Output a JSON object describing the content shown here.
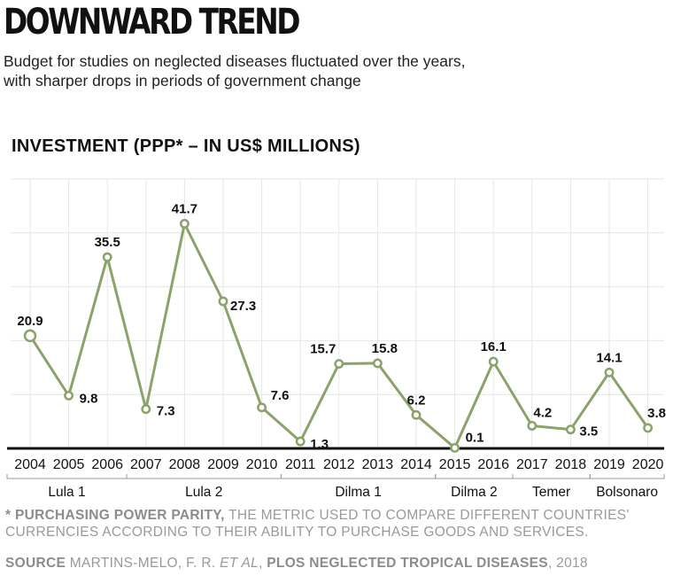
{
  "header": {
    "title": "DOWNWARD TREND",
    "subtitle_line1": "Budget for studies on neglected diseases fluctuated over the years,",
    "subtitle_line2": "with sharper drops in periods of government change"
  },
  "chart_data": {
    "type": "line",
    "title": "DOWNWARD TREND",
    "ylabel": "INVESTMENT (PPP* – IN US$ MILLIONS)",
    "xlabel": "",
    "x": [
      "2004",
      "2005",
      "2006",
      "2007",
      "2008",
      "2009",
      "2010",
      "2011",
      "2012",
      "2013",
      "2014",
      "2015",
      "2016",
      "2017",
      "2018",
      "2019",
      "2020"
    ],
    "series": [
      {
        "values": [
          20.9,
          9.8,
          35.5,
          7.3,
          41.7,
          27.3,
          7.6,
          1.3,
          15.7,
          15.8,
          6.2,
          0.1,
          16.1,
          4.2,
          3.5,
          14.1,
          3.8
        ]
      }
    ],
    "data_labels": [
      "20.9",
      "9.8",
      "35.5",
      "7.3",
      "41.7",
      "27.3",
      "7.6",
      "1.3",
      "15.7",
      "15.8",
      "6.2",
      "0.1",
      "16.1",
      "4.2",
      "3.5",
      "14.1",
      "3.8"
    ],
    "ylim": [
      0,
      50
    ],
    "grid": true,
    "periods": [
      {
        "label": "Lula 1",
        "from": "2004",
        "to": "2006"
      },
      {
        "label": "Lula 2",
        "from": "2007",
        "to": "2010"
      },
      {
        "label": "Dilma 1",
        "from": "2011",
        "to": "2014"
      },
      {
        "label": "Dilma 2",
        "from": "2015",
        "to": "2016"
      },
      {
        "label": "Temer",
        "from": "2017",
        "to": "2018"
      },
      {
        "label": "Bolsonaro",
        "from": "2019",
        "to": "2020"
      }
    ],
    "colors": {
      "line": "#8ba36a",
      "grid": "#e6e6e6",
      "axis": "#111111"
    }
  },
  "footnote": {
    "marker": "* PURCHASING POWER PARITY,",
    "text": " THE METRIC USED TO COMPARE DIFFERENT COUNTRIES' CURRENCIES ACCORDING TO THEIR ABILITY TO PURCHASE GOODS AND SERVICES."
  },
  "source": {
    "label": "SOURCE",
    "authors": " MARTINS-MELO, F. R. ",
    "etal": "ET AL",
    "sep": ", ",
    "journal": "PLOS NEGLECTED TROPICAL DISEASES",
    "year": ", 2018"
  }
}
